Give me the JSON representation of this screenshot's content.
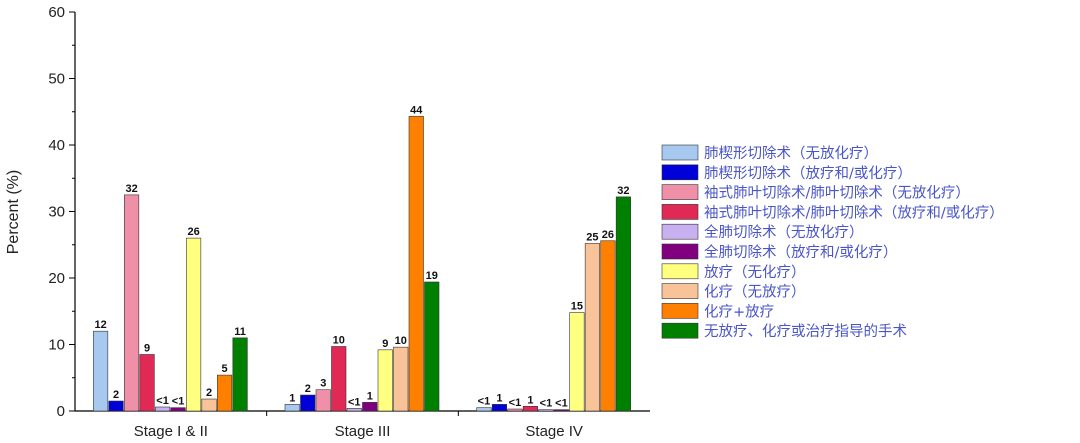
{
  "chart_data": {
    "type": "bar",
    "ylabel": "Percent (%)",
    "xlabel": "",
    "ylim": [
      0,
      60
    ],
    "yticks": [
      0,
      10,
      20,
      30,
      40,
      50,
      60
    ],
    "categories": [
      "Stage I & II",
      "Stage III",
      "Stage IV"
    ],
    "series": [
      {
        "name": "肺楔形切除术（无放化疗）",
        "color": "#a7c8ef",
        "values": [
          12,
          1,
          0.5
        ],
        "labels": [
          "12",
          "1",
          "<1"
        ]
      },
      {
        "name": "肺楔形切除术（放疗和/或化疗）",
        "color": "#0000d8",
        "values": [
          1.5,
          2.4,
          1.0
        ],
        "labels": [
          "2",
          "2",
          "1"
        ]
      },
      {
        "name": "袖式肺叶切除术/肺叶切除术（无放化疗）",
        "color": "#f090a8",
        "values": [
          32.5,
          3.2,
          0.3
        ],
        "labels": [
          "32",
          "3",
          "<1"
        ]
      },
      {
        "name": "袖式肺叶切除术/肺叶切除术（放疗和/或化疗）",
        "color": "#e02a55",
        "values": [
          8.5,
          9.7,
          0.7
        ],
        "labels": [
          "9",
          "10",
          "1"
        ]
      },
      {
        "name": "全肺切除术（无放化疗）",
        "color": "#c9b0f0",
        "values": [
          0.6,
          0.4,
          0.2
        ],
        "labels": [
          "<1",
          "<1",
          "<1"
        ]
      },
      {
        "name": "全肺切除术（放疗和/或化疗）",
        "color": "#800080",
        "values": [
          0.5,
          1.3,
          0.2
        ],
        "labels": [
          "<1",
          "1",
          "<1"
        ]
      },
      {
        "name": "放疗（无化疗）",
        "color": "#ffff80",
        "values": [
          26,
          9.2,
          14.8
        ],
        "labels": [
          "26",
          "9",
          "15"
        ]
      },
      {
        "name": "化疗（无放疗）",
        "color": "#f9c39a",
        "values": [
          1.8,
          9.6,
          25.2
        ],
        "labels": [
          "2",
          "10",
          "25"
        ]
      },
      {
        "name": "化疗+放疗",
        "color": "#ff7f00",
        "values": [
          5.4,
          44.3,
          25.6
        ],
        "labels": [
          "5",
          "44",
          "26"
        ]
      },
      {
        "name": "无放疗、化疗或治疗指导的手术",
        "color": "#008000",
        "values": [
          11,
          19.4,
          32.2
        ],
        "labels": [
          "11",
          "19",
          "32"
        ]
      }
    ]
  }
}
